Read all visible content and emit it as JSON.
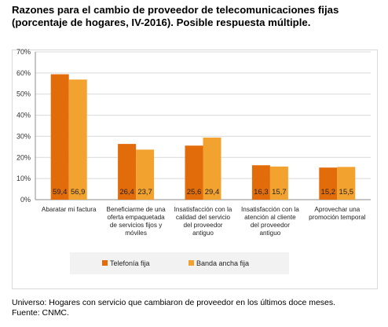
{
  "title_line1": "Razones para el cambio de proveedor de telecomunicaciones fijas",
  "title_line2": "(porcentaje de hogares, IV-2016). Posible respuesta múltiple.",
  "note_universe": "Universo: Hogares con servicio que cambiaron de proveedor en los últimos doce meses.",
  "note_source": "Fuente: CNMC.",
  "chart_data": {
    "type": "bar",
    "categories": [
      [
        "Abaratar mi factura"
      ],
      [
        "Beneficiarme de una",
        "oferta empaquetada",
        "de servicios fijos y",
        "móviles"
      ],
      [
        "Insatisfacción con la",
        "calidad del servicio",
        "del proveedor",
        "antiguo"
      ],
      [
        "Insatisfacción con la",
        "atención al cliente",
        "del proveedor",
        "antiguo"
      ],
      [
        "Aprovechar una",
        "promoción temporal"
      ]
    ],
    "series": [
      {
        "name": "Telefonía fija",
        "color": "#e36c0a",
        "values": [
          59.4,
          26.4,
          25.6,
          16.3,
          15.2
        ],
        "labels": [
          "59,4",
          "26,4",
          "25,6",
          "16,3",
          "15,2"
        ]
      },
      {
        "name": "Banda ancha fija",
        "color": "#f2a22e",
        "values": [
          56.9,
          23.7,
          29.4,
          15.7,
          15.5
        ],
        "labels": [
          "56,9",
          "23,7",
          "29,4",
          "15,7",
          "15,5"
        ]
      }
    ],
    "ylim": [
      0,
      70
    ],
    "yticks": [
      "0%",
      "10%",
      "20%",
      "30%",
      "40%",
      "50%",
      "60%",
      "70%"
    ],
    "grid": true,
    "legend_position": "bottom"
  }
}
